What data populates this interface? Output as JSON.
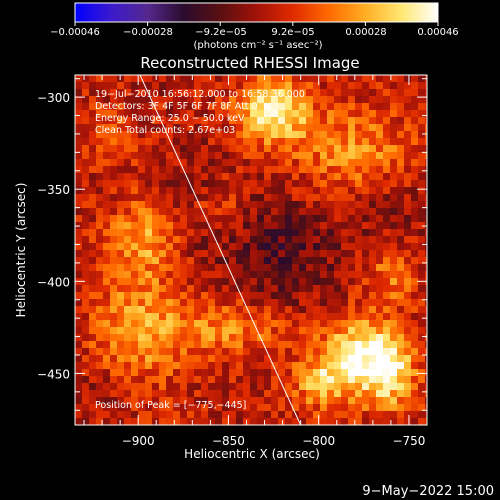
{
  "chart_data": {
    "type": "heatmap",
    "title": "Reconstructed RHESSI Image",
    "xlabel": "Heliocentric X (arcsec)",
    "ylabel": "Heliocentric Y (arcsec)",
    "xlim": [
      -935,
      -740
    ],
    "ylim": [
      -478,
      -288
    ],
    "x_ticks": [
      -900,
      -850,
      -800,
      -750
    ],
    "x_tick_labels": [
      "−900",
      "−850",
      "−800",
      "−750"
    ],
    "y_ticks": [
      -300,
      -350,
      -400,
      -450
    ],
    "y_tick_labels": [
      "−300",
      "−350",
      "−400",
      "−450"
    ],
    "colorbar": {
      "range": [
        -0.00046,
        0.00046
      ],
      "tick_labels": [
        "−0.00046",
        "−0.00028",
        "−9.2e−05",
        "9.2e−05",
        "0.00028",
        "0.00046"
      ],
      "units_label": "(photons cm⁻² s⁻¹ asec⁻²)",
      "colortable": [
        "#0000ff",
        "#3b1acd",
        "#55288d",
        "#2a0b2d",
        "#5a0f12",
        "#a11208",
        "#e02b00",
        "#ff6a00",
        "#ffae24",
        "#ffe773",
        "#ffffff"
      ]
    },
    "annotations": {
      "time_range": "19−Jul−2010 16:56:12.000 to 16:58:36.000",
      "detectors": "Detectors: 3F 4F 5F 6F 7F 8F Att 0",
      "energy_range": "Energy Range: 25.0 − 50.0 keV",
      "method_counts": "Clean     Total counts: 2.67e+03",
      "peak_position": "Position of Peak = [−775,−445]"
    },
    "peak": {
      "x": -775,
      "y": -445
    },
    "limb_line": [
      [
        -899,
        -288
      ],
      [
        -810,
        -478
      ]
    ],
    "bright_sources": [
      {
        "x": -825,
        "y": -308,
        "amp": 1.0,
        "sx": 14,
        "sy": 12
      },
      {
        "x": -777,
        "y": -440,
        "amp": 1.0,
        "sx": 15,
        "sy": 15
      },
      {
        "x": -760,
        "y": -450,
        "amp": 0.7,
        "sx": 10,
        "sy": 14
      },
      {
        "x": -800,
        "y": -455,
        "amp": 0.6,
        "sx": 10,
        "sy": 10
      },
      {
        "x": -780,
        "y": -330,
        "amp": 0.55,
        "sx": 22,
        "sy": 16
      },
      {
        "x": -900,
        "y": -430,
        "amp": 0.55,
        "sx": 18,
        "sy": 30
      },
      {
        "x": -895,
        "y": -375,
        "amp": 0.5,
        "sx": 14,
        "sy": 14
      },
      {
        "x": -850,
        "y": -425,
        "amp": 0.5,
        "sx": 24,
        "sy": 10
      },
      {
        "x": -855,
        "y": -360,
        "amp": 0.4,
        "sx": 10,
        "sy": 12
      },
      {
        "x": -760,
        "y": -395,
        "amp": 0.45,
        "sx": 10,
        "sy": 12
      },
      {
        "x": -915,
        "y": -320,
        "amp": 0.35,
        "sx": 10,
        "sy": 10
      }
    ],
    "cold_regions": [
      {
        "x": -820,
        "y": -385,
        "amp": 0.9,
        "sx": 25,
        "sy": 22
      },
      {
        "x": -865,
        "y": -360,
        "amp": 0.6,
        "sx": 15,
        "sy": 20
      },
      {
        "x": -910,
        "y": -460,
        "amp": 0.7,
        "sx": 20,
        "sy": 12
      },
      {
        "x": -760,
        "y": -360,
        "amp": 0.5,
        "sx": 14,
        "sy": 16
      }
    ]
  },
  "footer": {
    "date": "9−May−2022 15:00"
  }
}
